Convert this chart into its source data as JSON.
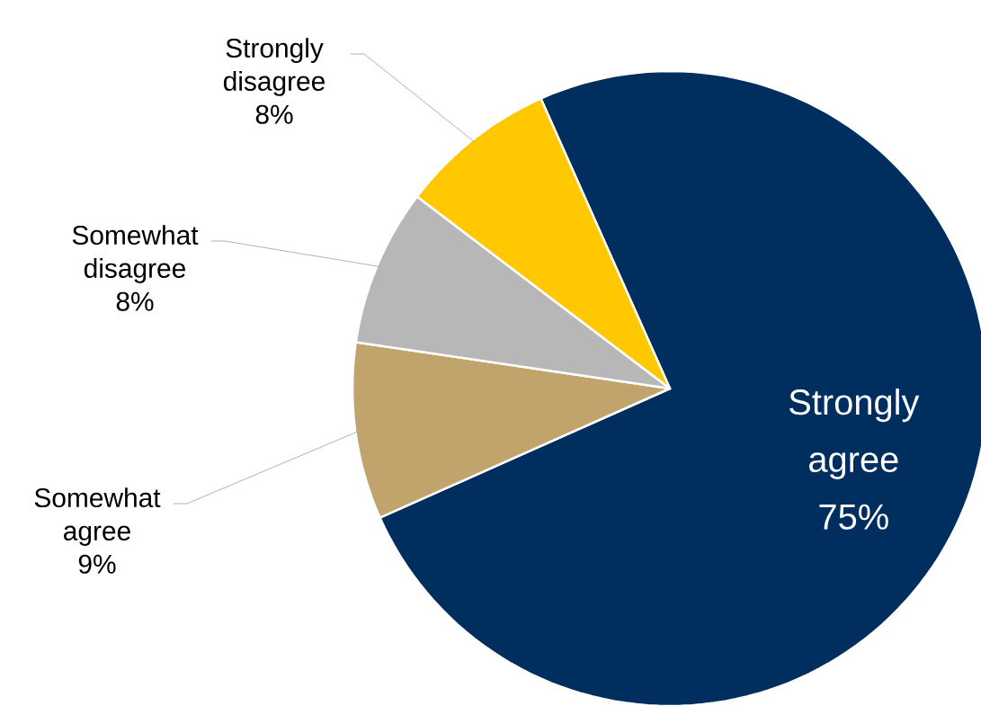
{
  "chart_data": {
    "type": "pie",
    "categories": [
      "Strongly agree",
      "Somewhat agree",
      "Somewhat disagree",
      "Strongly disagree"
    ],
    "values": [
      75,
      9,
      8,
      8
    ],
    "colors": [
      "#002f5f",
      "#c0a46c",
      "#b7b7b7",
      "#ffc800"
    ],
    "value_labels": [
      "75%",
      "9%",
      "8%",
      "8%"
    ],
    "legend": false
  }
}
